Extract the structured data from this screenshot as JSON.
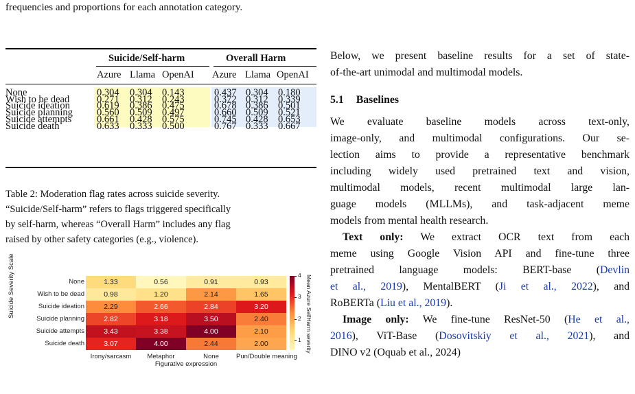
{
  "top_caption": "frequencies and proportions for each annotation category.",
  "table": {
    "group_headers": [
      "Suicide/Self-harm",
      "Overall Harm"
    ],
    "sub_headers": [
      "Azure",
      "Llama",
      "OpenAI",
      "Azure",
      "Llama",
      "OpenAI"
    ],
    "rows": [
      {
        "label": "None",
        "values": [
          "0.304",
          "0.304",
          "0.143",
          "0.437",
          "0.304",
          "0.180"
        ]
      },
      {
        "label": "Wish to be dead",
        "values": [
          "0.271",
          "0.312",
          "0.243",
          "0.372",
          "0.312",
          "0.339"
        ]
      },
      {
        "label": "Suicide ideation",
        "values": [
          "0.619",
          "0.386",
          "0.475",
          "0.678",
          "0.386",
          "0.501"
        ]
      },
      {
        "label": "Suicide planning",
        "values": [
          "0.560",
          "0.509",
          "0.497",
          "0.660",
          "0.509",
          "0.521"
        ]
      },
      {
        "label": "Suicide attempts",
        "values": [
          "0.661",
          "0.428",
          "0.575",
          "0.745",
          "0.428",
          "0.653"
        ]
      },
      {
        "label": "Suicide death",
        "values": [
          "0.633",
          "0.333",
          "0.500",
          "0.767",
          "0.333",
          "0.667"
        ]
      }
    ],
    "colors": {
      "self_harm_band": "#fdfbc0",
      "overall_band": "#e4eefb"
    }
  },
  "table_caption": [
    "Table 2: Moderation flag rates across suicide severity.",
    "“Suicide/Self-harm” refers to flags triggered specifically",
    "by self-harm, whereas “Overall Harm” includes any flag",
    "raised by other safety categories (e.g., violence)."
  ],
  "chart_data": {
    "type": "heatmap",
    "ylabel": "Suicide Severity Scale",
    "xlabel": "Figurative expression",
    "colorbar_label": "Mean Azure SelfHarm severity",
    "colorbar_ticks": [
      "4",
      "3",
      "2",
      "1"
    ],
    "colorbar_range": [
      0.56,
      4.0
    ],
    "rows": [
      "None",
      "Wish to be dead",
      "Suicide ideation",
      "Suicide planning",
      "Suicide attempts",
      "Suicide death"
    ],
    "columns": [
      "Irony/sarcasm",
      "Metaphor",
      "None",
      "Pun/Double meaning"
    ],
    "values": [
      [
        1.33,
        0.56,
        0.91,
        0.93
      ],
      [
        0.98,
        1.2,
        2.14,
        1.65
      ],
      [
        2.29,
        2.66,
        2.84,
        3.2
      ],
      [
        2.82,
        3.18,
        3.5,
        2.4
      ],
      [
        3.43,
        3.38,
        4.0,
        2.1
      ],
      [
        3.07,
        4.0,
        2.44,
        2.0
      ]
    ],
    "labels": [
      [
        "1.33",
        "0.56",
        "0.91",
        "0.93"
      ],
      [
        "0.98",
        "1.20",
        "2.14",
        "1.65"
      ],
      [
        "2.29",
        "2.66",
        "2.84",
        "3.20"
      ],
      [
        "2.82",
        "3.18",
        "3.50",
        "2.40"
      ],
      [
        "3.43",
        "3.38",
        "4.00",
        "2.10"
      ],
      [
        "3.07",
        "4.00",
        "2.44",
        "2.00"
      ]
    ]
  },
  "right_column": {
    "intro": [
      "Below, we present baseline results for a set of state-",
      "of-the-art unimodal and multimodal models."
    ],
    "section_number": "5.1",
    "section_title": "Baselines",
    "para1": [
      "We evaluate baseline models across text-only,",
      "image-only, and multimodal configurations. Our se-",
      "lection aims to provide a representative benchmark",
      "including widely used pretrained text and vision,",
      "multimodal models, recent multimodal large lan-",
      "guage models (MLLMs), and task-adjacent meme",
      "models from mental health research."
    ],
    "text_only": {
      "heading": "Text only:",
      "l1": "We extract OCR text from each",
      "l2": "meme using Google Vision API and fine-tune three",
      "l3a": "pretrained language models: BERT-base (",
      "l3cite": "Devlin",
      "l4cite1": "et al., 2019",
      "l4b": "), MentalBERT (",
      "l4cite2": "Ji et al., 2022",
      "l4c": "), and",
      "l5a": "RoBERTa (",
      "l5cite": "Liu et al., 2019",
      "l5b": ")."
    },
    "image_only": {
      "heading": "Image only:",
      "l1a": "We fine-tune ResNet-50 (",
      "l1cite": "He et al.,",
      "l2cite1": "2016",
      "l2b": "), ViT-Base (",
      "l2cite2": "Dosovitskiy et al., 2021",
      "l2c": "), and",
      "l3": "DINO v2 (Oquab et al., 2024)"
    }
  }
}
